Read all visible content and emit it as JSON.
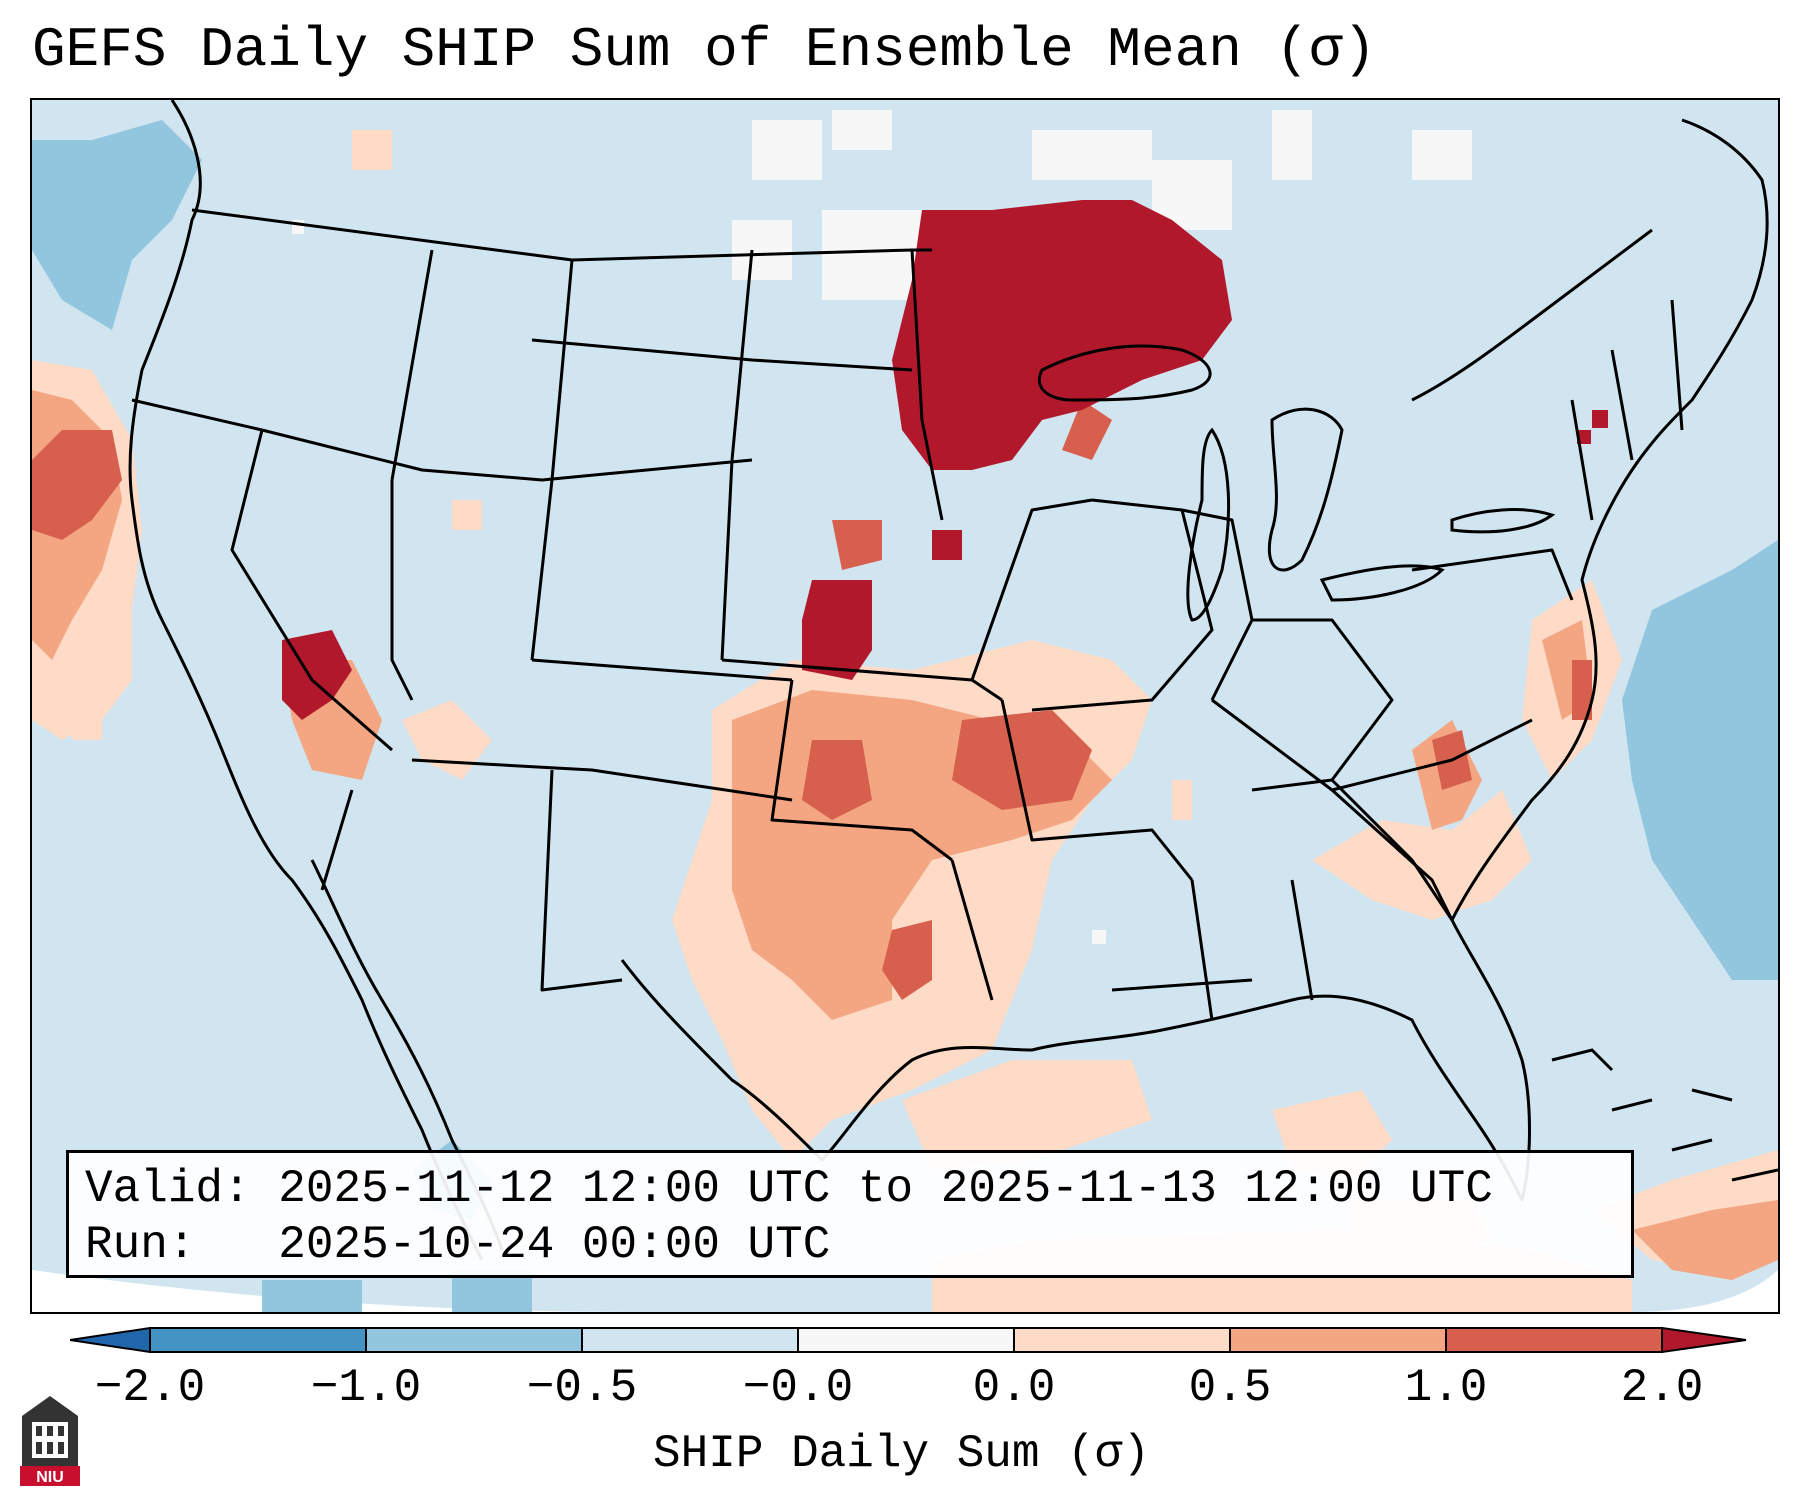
{
  "title": "GEFS Daily SHIP Sum of Ensemble Mean (σ)",
  "infobox": {
    "valid_label": "Valid:",
    "valid_value": "2025-11-12 12:00 UTC to 2025-11-13 12:00 UTC",
    "run_label": "Run:",
    "run_value": "2025-10-24 00:00 UTC"
  },
  "colorbar": {
    "label": "SHIP Daily Sum (σ)",
    "ticks": [
      "−2.0",
      "−1.0",
      "−0.5",
      "−0.0",
      "0.0",
      "0.5",
      "1.0",
      "2.0"
    ],
    "colors": [
      "#4393c3",
      "#92c5de",
      "#d1e5f0",
      "#f7f7f7",
      "#fddbc7",
      "#f4a582",
      "#d6604d",
      "#b2182b"
    ]
  },
  "logo": {
    "text": "NIU",
    "name": "niu-seal-icon"
  }
}
